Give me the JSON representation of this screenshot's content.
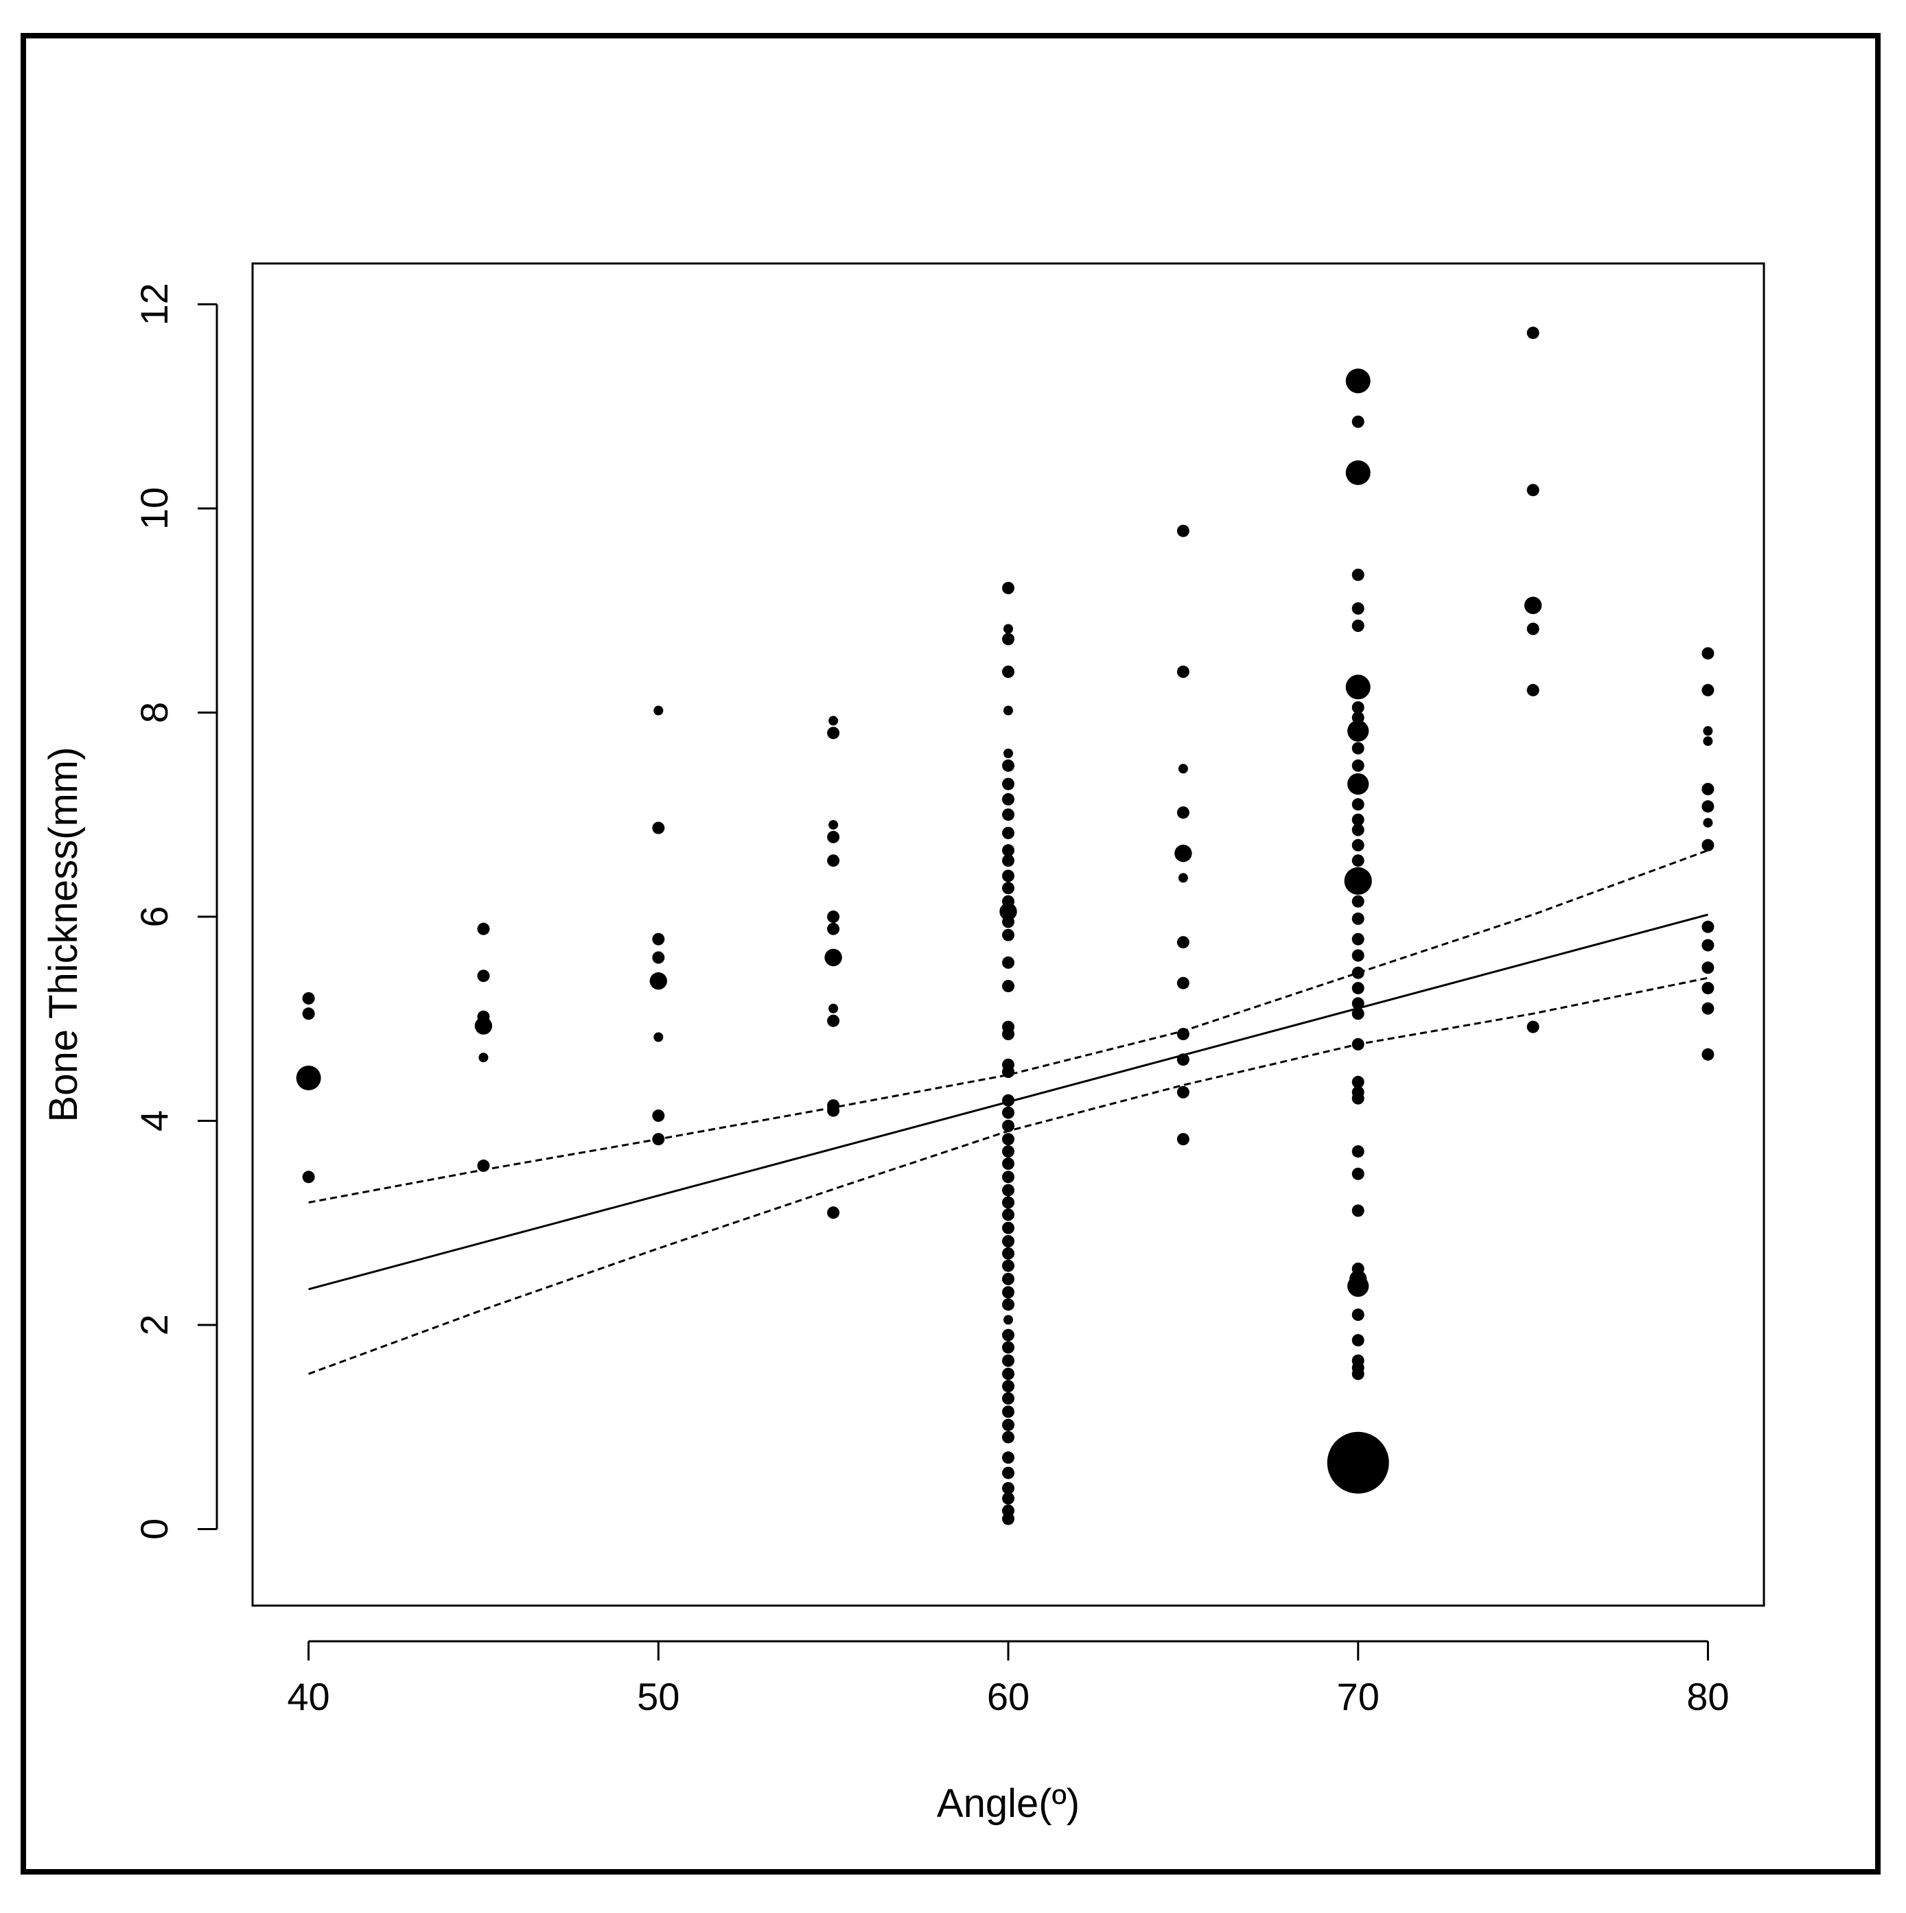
{
  "chart_data": {
    "type": "scatter",
    "title": "",
    "xlabel": "Angle(º)",
    "ylabel": "Bone Thickness(mm)",
    "xlim": [
      38.4,
      81.6
    ],
    "ylim": [
      -0.75,
      12.4
    ],
    "xticks": [
      40,
      50,
      60,
      70,
      80
    ],
    "yticks": [
      0,
      2,
      4,
      6,
      8,
      10,
      12
    ],
    "xtick_labels": [
      "40",
      "50",
      "60",
      "70",
      "80"
    ],
    "ytick_labels": [
      "0",
      "2",
      "4",
      "6",
      "8",
      "10",
      "12"
    ],
    "grid": false,
    "legend": "none",
    "point_color": "#000000",
    "points_note_size": "relative marker size = number of coincident observations",
    "points": [
      {
        "x": 40,
        "y": 5.2,
        "s": 1
      },
      {
        "x": 40,
        "y": 5.05,
        "s": 1
      },
      {
        "x": 40,
        "y": 4.42,
        "s": 4
      },
      {
        "x": 40,
        "y": 3.45,
        "s": 1
      },
      {
        "x": 45,
        "y": 5.88,
        "s": 1
      },
      {
        "x": 45,
        "y": 5.42,
        "s": 1
      },
      {
        "x": 45,
        "y": 5.02,
        "s": 1
      },
      {
        "x": 45,
        "y": 4.93,
        "s": 2
      },
      {
        "x": 45,
        "y": 4.62,
        "s": 0.6
      },
      {
        "x": 45,
        "y": 3.56,
        "s": 1
      },
      {
        "x": 50,
        "y": 8.02,
        "s": 0.6
      },
      {
        "x": 50,
        "y": 6.87,
        "s": 1
      },
      {
        "x": 50,
        "y": 5.78,
        "s": 1
      },
      {
        "x": 50,
        "y": 5.6,
        "s": 1
      },
      {
        "x": 50,
        "y": 5.37,
        "s": 2
      },
      {
        "x": 50,
        "y": 4.82,
        "s": 0.6
      },
      {
        "x": 50,
        "y": 4.05,
        "s": 1
      },
      {
        "x": 50,
        "y": 3.82,
        "s": 1
      },
      {
        "x": 55,
        "y": 7.92,
        "s": 0.6
      },
      {
        "x": 55,
        "y": 7.8,
        "s": 1
      },
      {
        "x": 55,
        "y": 6.9,
        "s": 0.6
      },
      {
        "x": 55,
        "y": 6.78,
        "s": 1
      },
      {
        "x": 55,
        "y": 6.55,
        "s": 1
      },
      {
        "x": 55,
        "y": 6.0,
        "s": 1
      },
      {
        "x": 55,
        "y": 5.88,
        "s": 1
      },
      {
        "x": 55,
        "y": 5.6,
        "s": 2
      },
      {
        "x": 55,
        "y": 5.1,
        "s": 0.6
      },
      {
        "x": 55,
        "y": 4.98,
        "s": 1
      },
      {
        "x": 55,
        "y": 4.15,
        "s": 1
      },
      {
        "x": 55,
        "y": 4.1,
        "s": 1
      },
      {
        "x": 55,
        "y": 3.1,
        "s": 1
      },
      {
        "x": 60,
        "y": 9.22,
        "s": 1
      },
      {
        "x": 60,
        "y": 8.82,
        "s": 0.6
      },
      {
        "x": 60,
        "y": 8.72,
        "s": 1
      },
      {
        "x": 60,
        "y": 8.4,
        "s": 1
      },
      {
        "x": 60,
        "y": 8.02,
        "s": 0.6
      },
      {
        "x": 60,
        "y": 7.6,
        "s": 0.6
      },
      {
        "x": 60,
        "y": 7.48,
        "s": 1
      },
      {
        "x": 60,
        "y": 7.3,
        "s": 1
      },
      {
        "x": 60,
        "y": 7.15,
        "s": 1
      },
      {
        "x": 60,
        "y": 7.0,
        "s": 1
      },
      {
        "x": 60,
        "y": 6.82,
        "s": 1
      },
      {
        "x": 60,
        "y": 6.65,
        "s": 1
      },
      {
        "x": 60,
        "y": 6.55,
        "s": 1
      },
      {
        "x": 60,
        "y": 6.4,
        "s": 1
      },
      {
        "x": 60,
        "y": 6.28,
        "s": 1
      },
      {
        "x": 60,
        "y": 6.15,
        "s": 1
      },
      {
        "x": 60,
        "y": 6.05,
        "s": 2
      },
      {
        "x": 60,
        "y": 5.95,
        "s": 1
      },
      {
        "x": 60,
        "y": 5.82,
        "s": 1
      },
      {
        "x": 60,
        "y": 5.55,
        "s": 1
      },
      {
        "x": 60,
        "y": 5.32,
        "s": 1
      },
      {
        "x": 60,
        "y": 4.92,
        "s": 1
      },
      {
        "x": 60,
        "y": 4.85,
        "s": 1
      },
      {
        "x": 60,
        "y": 4.55,
        "s": 1
      },
      {
        "x": 60,
        "y": 4.48,
        "s": 1
      },
      {
        "x": 60,
        "y": 4.2,
        "s": 1
      },
      {
        "x": 60,
        "y": 4.08,
        "s": 1
      },
      {
        "x": 60,
        "y": 3.95,
        "s": 1
      },
      {
        "x": 60,
        "y": 3.82,
        "s": 1
      },
      {
        "x": 60,
        "y": 3.7,
        "s": 1
      },
      {
        "x": 60,
        "y": 3.58,
        "s": 1
      },
      {
        "x": 60,
        "y": 3.45,
        "s": 1
      },
      {
        "x": 60,
        "y": 3.32,
        "s": 1
      },
      {
        "x": 60,
        "y": 3.2,
        "s": 1
      },
      {
        "x": 60,
        "y": 3.08,
        "s": 1
      },
      {
        "x": 60,
        "y": 2.95,
        "s": 1
      },
      {
        "x": 60,
        "y": 2.82,
        "s": 1
      },
      {
        "x": 60,
        "y": 2.7,
        "s": 1
      },
      {
        "x": 60,
        "y": 2.58,
        "s": 1
      },
      {
        "x": 60,
        "y": 2.45,
        "s": 1
      },
      {
        "x": 60,
        "y": 2.32,
        "s": 1
      },
      {
        "x": 60,
        "y": 2.2,
        "s": 1
      },
      {
        "x": 60,
        "y": 2.05,
        "s": 0.6
      },
      {
        "x": 60,
        "y": 1.9,
        "s": 1
      },
      {
        "x": 60,
        "y": 1.78,
        "s": 1
      },
      {
        "x": 60,
        "y": 1.65,
        "s": 1
      },
      {
        "x": 60,
        "y": 1.52,
        "s": 1
      },
      {
        "x": 60,
        "y": 1.4,
        "s": 1
      },
      {
        "x": 60,
        "y": 1.28,
        "s": 1
      },
      {
        "x": 60,
        "y": 1.15,
        "s": 1
      },
      {
        "x": 60,
        "y": 1.02,
        "s": 1
      },
      {
        "x": 60,
        "y": 0.9,
        "s": 1
      },
      {
        "x": 60,
        "y": 0.7,
        "s": 1
      },
      {
        "x": 60,
        "y": 0.55,
        "s": 1
      },
      {
        "x": 60,
        "y": 0.4,
        "s": 1
      },
      {
        "x": 60,
        "y": 0.3,
        "s": 1
      },
      {
        "x": 60,
        "y": 0.18,
        "s": 1
      },
      {
        "x": 60,
        "y": 0.1,
        "s": 1
      },
      {
        "x": 65,
        "y": 9.78,
        "s": 1
      },
      {
        "x": 65,
        "y": 8.4,
        "s": 1
      },
      {
        "x": 65,
        "y": 7.45,
        "s": 0.6
      },
      {
        "x": 65,
        "y": 7.02,
        "s": 1
      },
      {
        "x": 65,
        "y": 6.62,
        "s": 2
      },
      {
        "x": 65,
        "y": 6.38,
        "s": 0.6
      },
      {
        "x": 65,
        "y": 5.75,
        "s": 1
      },
      {
        "x": 65,
        "y": 5.35,
        "s": 1
      },
      {
        "x": 65,
        "y": 4.85,
        "s": 1
      },
      {
        "x": 65,
        "y": 4.6,
        "s": 1
      },
      {
        "x": 65,
        "y": 4.28,
        "s": 1
      },
      {
        "x": 65,
        "y": 3.82,
        "s": 1
      },
      {
        "x": 70,
        "y": 11.25,
        "s": 4
      },
      {
        "x": 70,
        "y": 10.85,
        "s": 1
      },
      {
        "x": 70,
        "y": 10.35,
        "s": 4
      },
      {
        "x": 70,
        "y": 9.35,
        "s": 1
      },
      {
        "x": 70,
        "y": 9.02,
        "s": 1
      },
      {
        "x": 70,
        "y": 8.85,
        "s": 1
      },
      {
        "x": 70,
        "y": 8.25,
        "s": 4
      },
      {
        "x": 70,
        "y": 8.05,
        "s": 1
      },
      {
        "x": 70,
        "y": 7.95,
        "s": 1
      },
      {
        "x": 70,
        "y": 7.82,
        "s": 3
      },
      {
        "x": 70,
        "y": 7.65,
        "s": 1
      },
      {
        "x": 70,
        "y": 7.48,
        "s": 1
      },
      {
        "x": 70,
        "y": 7.3,
        "s": 3
      },
      {
        "x": 70,
        "y": 7.1,
        "s": 1
      },
      {
        "x": 70,
        "y": 6.95,
        "s": 1
      },
      {
        "x": 70,
        "y": 6.85,
        "s": 1
      },
      {
        "x": 70,
        "y": 6.7,
        "s": 1
      },
      {
        "x": 70,
        "y": 6.55,
        "s": 1
      },
      {
        "x": 70,
        "y": 6.35,
        "s": 5
      },
      {
        "x": 70,
        "y": 6.15,
        "s": 1
      },
      {
        "x": 70,
        "y": 5.98,
        "s": 1
      },
      {
        "x": 70,
        "y": 5.78,
        "s": 1
      },
      {
        "x": 70,
        "y": 5.62,
        "s": 1
      },
      {
        "x": 70,
        "y": 5.45,
        "s": 1
      },
      {
        "x": 70,
        "y": 5.3,
        "s": 1
      },
      {
        "x": 70,
        "y": 5.15,
        "s": 1
      },
      {
        "x": 70,
        "y": 5.05,
        "s": 1
      },
      {
        "x": 70,
        "y": 4.75,
        "s": 1
      },
      {
        "x": 70,
        "y": 4.38,
        "s": 1
      },
      {
        "x": 70,
        "y": 4.28,
        "s": 1
      },
      {
        "x": 70,
        "y": 4.22,
        "s": 1
      },
      {
        "x": 70,
        "y": 3.7,
        "s": 1
      },
      {
        "x": 70,
        "y": 3.48,
        "s": 1
      },
      {
        "x": 70,
        "y": 3.12,
        "s": 1
      },
      {
        "x": 70,
        "y": 2.55,
        "s": 1
      },
      {
        "x": 70,
        "y": 2.45,
        "s": 2
      },
      {
        "x": 70,
        "y": 2.38,
        "s": 3
      },
      {
        "x": 70,
        "y": 2.1,
        "s": 1
      },
      {
        "x": 70,
        "y": 1.85,
        "s": 1
      },
      {
        "x": 70,
        "y": 1.65,
        "s": 1
      },
      {
        "x": 70,
        "y": 1.58,
        "s": 1
      },
      {
        "x": 70,
        "y": 1.52,
        "s": 1
      },
      {
        "x": 70,
        "y": 0.65,
        "s": 25
      },
      {
        "x": 75,
        "y": 11.72,
        "s": 1
      },
      {
        "x": 75,
        "y": 10.18,
        "s": 1
      },
      {
        "x": 75,
        "y": 9.05,
        "s": 2
      },
      {
        "x": 75,
        "y": 8.82,
        "s": 1
      },
      {
        "x": 75,
        "y": 8.22,
        "s": 1
      },
      {
        "x": 75,
        "y": 4.92,
        "s": 1
      },
      {
        "x": 80,
        "y": 8.58,
        "s": 1
      },
      {
        "x": 80,
        "y": 8.22,
        "s": 1
      },
      {
        "x": 80,
        "y": 7.82,
        "s": 0.6
      },
      {
        "x": 80,
        "y": 7.72,
        "s": 0.6
      },
      {
        "x": 80,
        "y": 7.25,
        "s": 1
      },
      {
        "x": 80,
        "y": 7.08,
        "s": 1
      },
      {
        "x": 80,
        "y": 6.92,
        "s": 0.6
      },
      {
        "x": 80,
        "y": 6.7,
        "s": 1
      },
      {
        "x": 80,
        "y": 5.9,
        "s": 1
      },
      {
        "x": 80,
        "y": 5.72,
        "s": 1
      },
      {
        "x": 80,
        "y": 5.5,
        "s": 1
      },
      {
        "x": 80,
        "y": 5.3,
        "s": 1
      },
      {
        "x": 80,
        "y": 5.1,
        "s": 1
      },
      {
        "x": 80,
        "y": 4.65,
        "s": 1
      }
    ],
    "fit_line": {
      "x": [
        40,
        80
      ],
      "y": [
        2.35,
        6.02
      ],
      "style": "solid"
    },
    "ci_upper": {
      "x": [
        40,
        45,
        50,
        55,
        60,
        65,
        70,
        75,
        80
      ],
      "y": [
        3.2,
        3.52,
        3.82,
        4.13,
        4.45,
        4.88,
        5.45,
        6.02,
        6.65
      ],
      "style": "dashed"
    },
    "ci_lower": {
      "x": [
        40,
        45,
        50,
        55,
        60,
        65,
        70,
        75,
        80
      ],
      "y": [
        1.52,
        2.15,
        2.75,
        3.33,
        3.9,
        4.35,
        4.75,
        5.05,
        5.4
      ],
      "style": "dashed"
    }
  }
}
